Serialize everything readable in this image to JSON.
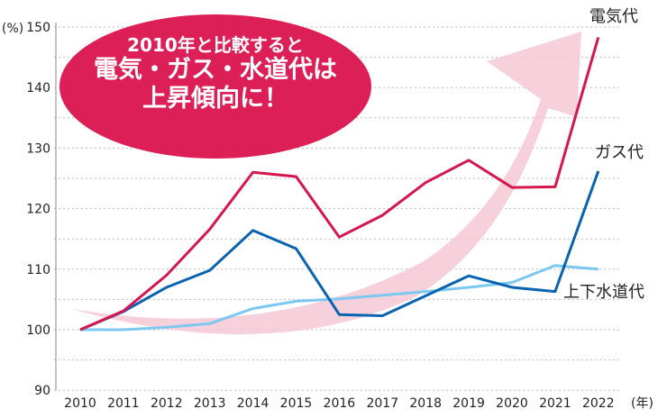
{
  "chart_data": {
    "type": "line",
    "title": "2010年と比較すると 電気・ガス・水道代は 上昇傾向に！",
    "callout": [
      "2010年と比較すると",
      "電気・ガス・水道代は",
      "上昇傾向に！"
    ],
    "ylabel": "(%)",
    "xlabel": "(年)",
    "ylim": [
      90,
      150
    ],
    "yticks": [
      90,
      100,
      110,
      120,
      130,
      140,
      150
    ],
    "grid": true,
    "x": [
      2010,
      2011,
      2012,
      2013,
      2014,
      2015,
      2016,
      2017,
      2018,
      2019,
      2020,
      2021,
      2022
    ],
    "series": [
      {
        "name": "電気代",
        "color": "#d6174f",
        "values": [
          100,
          103.1,
          109,
          116.6,
          126,
          125.3,
          115.3,
          118.9,
          124.3,
          128,
          123.5,
          123.6,
          148.3
        ]
      },
      {
        "name": "ガス代",
        "color": "#0a63b0",
        "values": [
          100,
          103,
          107,
          109.8,
          116.4,
          113.4,
          102.5,
          102.3,
          105.6,
          108.9,
          107,
          106.3,
          126.2
        ]
      },
      {
        "name": "上下水道代",
        "color": "#7cc8f0",
        "values": [
          100,
          100,
          100.4,
          101,
          103.5,
          104.7,
          105.1,
          105.7,
          106.3,
          107,
          107.8,
          110.6,
          110
        ]
      }
    ]
  }
}
